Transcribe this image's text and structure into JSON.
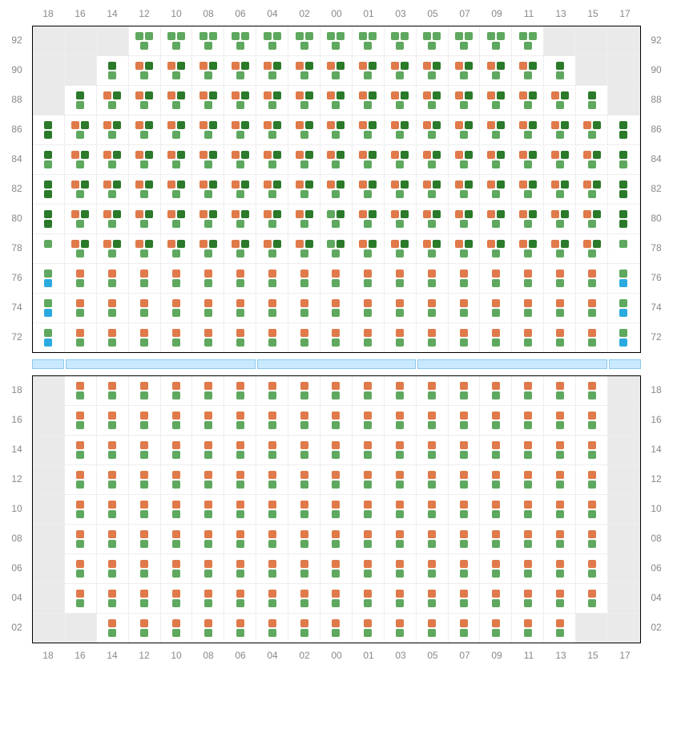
{
  "colors": {
    "orange": "#e07a4a",
    "green": "#5fa85f",
    "darkgreen": "#2a7a2a",
    "blue": "#2baae0",
    "blank": "#eaeaea"
  },
  "col_labels": [
    "18",
    "16",
    "14",
    "12",
    "10",
    "08",
    "06",
    "04",
    "02",
    "00",
    "01",
    "03",
    "05",
    "07",
    "09",
    "11",
    "13",
    "15",
    "17"
  ],
  "sections": [
    {
      "row_labels": [
        "92",
        "90",
        "88",
        "86",
        "84",
        "82",
        "80",
        "78",
        "76",
        "74",
        "72"
      ],
      "rows": [
        [
          "blank",
          "blank",
          "blank",
          "gg_g",
          "gg_g",
          "gg_g",
          "gg_g",
          "gg_g",
          "gg_g",
          "gg_g",
          "gg_g",
          "gg_g",
          "gg_g",
          "gg_g",
          "gg_g",
          "gg_g",
          "blank",
          "blank",
          "blank"
        ],
        [
          "blank",
          "blank",
          "d_g",
          "od_g",
          "od_g",
          "od_g",
          "od_g",
          "od_g",
          "od_g",
          "od_g",
          "od_g",
          "od_g",
          "od_g",
          "od_g",
          "od_g",
          "od_g",
          "d_g",
          "blank",
          "blank"
        ],
        [
          "blank",
          "d_g",
          "od_g",
          "od_g",
          "od_g",
          "od_g",
          "od_g",
          "od_g",
          "od_g",
          "od_g",
          "od_g",
          "od_g",
          "od_g",
          "od_g",
          "od_g",
          "od_g",
          "od_g",
          "d_g",
          "blank"
        ],
        [
          "d_d",
          "od_g",
          "od_g",
          "od_g",
          "od_g",
          "od_g",
          "od_g",
          "od_g",
          "od_g",
          "od_g",
          "od_g",
          "od_g",
          "od_g",
          "od_g",
          "od_g",
          "od_g",
          "od_g",
          "od_g",
          "d_d"
        ],
        [
          "d_g",
          "od_g",
          "od_g",
          "od_g",
          "od_g",
          "od_g",
          "od_g",
          "od_g",
          "od_g",
          "od_g",
          "od_g",
          "od_g",
          "od_g",
          "od_g",
          "od_g",
          "od_g",
          "od_g",
          "od_g",
          "d_g"
        ],
        [
          "d_d",
          "od_g",
          "od_g",
          "od_g",
          "od_g",
          "od_g",
          "od_g",
          "od_g",
          "od_g",
          "od_g",
          "od_g",
          "od_g",
          "od_g",
          "od_g",
          "od_g",
          "od_g",
          "od_g",
          "od_g",
          "d_d"
        ],
        [
          "d_d",
          "od_g",
          "od_g",
          "od_g",
          "od_g",
          "od_g",
          "od_g",
          "od_g",
          "od_g",
          "gd_g",
          "od_g",
          "od_g",
          "od_g",
          "od_g",
          "od_g",
          "od_g",
          "od_g",
          "od_g",
          "d_d"
        ],
        [
          "g_",
          "od_g",
          "od_g",
          "od_g",
          "od_g",
          "od_g",
          "od_g",
          "od_g",
          "od_g",
          "gd_g",
          "od_g",
          "od_g",
          "od_g",
          "od_g",
          "od_g",
          "od_g",
          "od_g",
          "od_g",
          "g_"
        ],
        [
          "g_b",
          "o_g",
          "o_g",
          "o_g",
          "o_g",
          "o_g",
          "o_g",
          "o_g",
          "o_g",
          "o_g",
          "o_g",
          "o_g",
          "o_g",
          "o_g",
          "o_g",
          "o_g",
          "o_g",
          "o_g",
          "g_b"
        ],
        [
          "g_b",
          "o_g",
          "o_g",
          "o_g",
          "o_g",
          "o_g",
          "o_g",
          "o_g",
          "o_g",
          "o_g",
          "o_g",
          "o_g",
          "o_g",
          "o_g",
          "o_g",
          "o_g",
          "o_g",
          "o_g",
          "g_b"
        ],
        [
          "g_b",
          "o_g",
          "o_g",
          "o_g",
          "o_g",
          "o_g",
          "o_g",
          "o_g",
          "o_g",
          "o_g",
          "o_g",
          "o_g",
          "o_g",
          "o_g",
          "o_g",
          "o_g",
          "o_g",
          "o_g",
          "g_b"
        ]
      ]
    },
    {
      "row_labels": [
        "18",
        "16",
        "14",
        "12",
        "10",
        "08",
        "06",
        "04",
        "02"
      ],
      "rows": [
        [
          "blank",
          "o_g",
          "o_g",
          "o_g",
          "o_g",
          "o_g",
          "o_g",
          "o_g",
          "o_g",
          "o_g",
          "o_g",
          "o_g",
          "o_g",
          "o_g",
          "o_g",
          "o_g",
          "o_g",
          "o_g",
          "blank"
        ],
        [
          "blank",
          "o_g",
          "o_g",
          "o_g",
          "o_g",
          "o_g",
          "o_g",
          "o_g",
          "o_g",
          "o_g",
          "o_g",
          "o_g",
          "o_g",
          "o_g",
          "o_g",
          "o_g",
          "o_g",
          "o_g",
          "blank"
        ],
        [
          "blank",
          "o_g",
          "o_g",
          "o_g",
          "o_g",
          "o_g",
          "o_g",
          "o_g",
          "o_g",
          "o_g",
          "o_g",
          "o_g",
          "o_g",
          "o_g",
          "o_g",
          "o_g",
          "o_g",
          "o_g",
          "blank"
        ],
        [
          "blank",
          "o_g",
          "o_g",
          "o_g",
          "o_g",
          "o_g",
          "o_g",
          "o_g",
          "o_g",
          "o_g",
          "o_g",
          "o_g",
          "o_g",
          "o_g",
          "o_g",
          "o_g",
          "o_g",
          "o_g",
          "blank"
        ],
        [
          "blank",
          "o_g",
          "o_g",
          "o_g",
          "o_g",
          "o_g",
          "o_g",
          "o_g",
          "o_g",
          "o_g",
          "o_g",
          "o_g",
          "o_g",
          "o_g",
          "o_g",
          "o_g",
          "o_g",
          "o_g",
          "blank"
        ],
        [
          "blank",
          "o_g",
          "o_g",
          "o_g",
          "o_g",
          "o_g",
          "o_g",
          "o_g",
          "o_g",
          "o_g",
          "o_g",
          "o_g",
          "o_g",
          "o_g",
          "o_g",
          "o_g",
          "o_g",
          "o_g",
          "blank"
        ],
        [
          "blank",
          "o_g",
          "o_g",
          "o_g",
          "o_g",
          "o_g",
          "o_g",
          "o_g",
          "o_g",
          "o_g",
          "o_g",
          "o_g",
          "o_g",
          "o_g",
          "o_g",
          "o_g",
          "o_g",
          "o_g",
          "blank"
        ],
        [
          "blank",
          "o_g",
          "o_g",
          "o_g",
          "o_g",
          "o_g",
          "o_g",
          "o_g",
          "o_g",
          "o_g",
          "o_g",
          "o_g",
          "o_g",
          "o_g",
          "o_g",
          "o_g",
          "o_g",
          "o_g",
          "blank"
        ],
        [
          "blank",
          "blank",
          "o_g",
          "o_g",
          "o_g",
          "o_g",
          "o_g",
          "o_g",
          "o_g",
          "o_g",
          "o_g",
          "o_g",
          "o_g",
          "o_g",
          "o_g",
          "o_g",
          "o_g",
          "blank",
          "blank"
        ]
      ]
    }
  ],
  "divider_segments": [
    40,
    240,
    200,
    240,
    40
  ],
  "cell_types": {
    "blank": {
      "blank": true
    },
    "gg_g": {
      "tl": "green",
      "tr": "green",
      "b": "green"
    },
    "od_g": {
      "tl": "orange",
      "tr": "darkgreen",
      "b": "green"
    },
    "gd_g": {
      "tl": "green",
      "tr": "darkgreen",
      "b": "green"
    },
    "d_g": {
      "single_t": "darkgreen",
      "single_b": "green"
    },
    "d_d": {
      "single_t": "darkgreen",
      "single_b": "darkgreen"
    },
    "g_": {
      "single_t": "green"
    },
    "g_b": {
      "single_t": "green",
      "single_b": "blue"
    },
    "o_g": {
      "single_t": "orange",
      "single_b": "green"
    }
  }
}
